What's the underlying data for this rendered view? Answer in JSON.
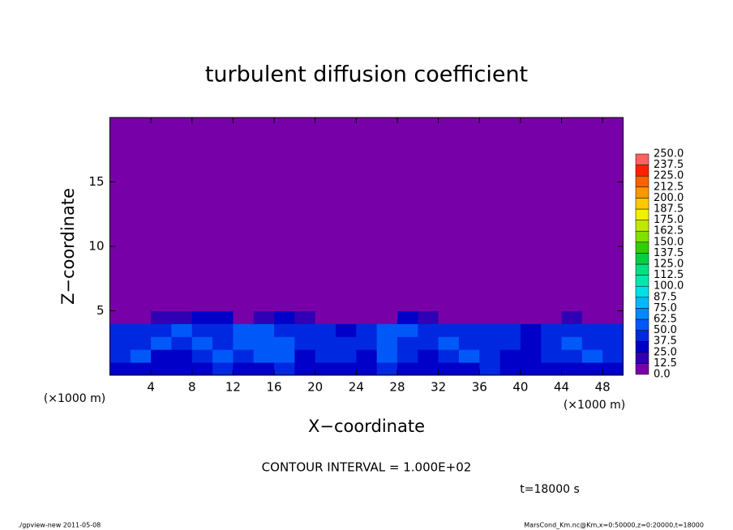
{
  "chart_data": {
    "type": "heatmap",
    "title": "turbulent diffusion coefficient",
    "xlabel": "X−coordinate",
    "ylabel": "Z−coordinate",
    "x_unit": "(×1000 m)",
    "x_unit_right": "(×1000 m)",
    "annotation": "CONTOUR INTERVAL = 1.000E+02",
    "time_label": "t=18000 s",
    "footer_left": "./gpview-new   2011-05-08",
    "footer_right": "MarsCond_Km.nc@Km,x=0:50000,z=0:20000,t=18000",
    "xlim": [
      0,
      50
    ],
    "ylim": [
      0,
      20
    ],
    "xticks": [
      4,
      8,
      12,
      16,
      20,
      24,
      28,
      32,
      36,
      40,
      44,
      48
    ],
    "yticks": [
      5,
      10,
      15
    ],
    "x_edges": [
      0,
      2,
      4,
      6,
      8,
      10,
      12,
      14,
      16,
      18,
      20,
      22,
      24,
      26,
      28,
      30,
      32,
      34,
      36,
      38,
      40,
      42,
      44,
      46,
      48,
      50
    ],
    "z_edges": [
      0,
      1,
      2,
      3,
      4,
      5,
      20
    ],
    "z_values": [
      [
        30,
        35,
        28,
        25,
        32,
        40,
        30,
        35,
        45,
        30,
        28,
        35,
        30,
        40,
        32,
        28,
        30,
        35,
        38,
        30,
        28,
        32,
        30,
        35,
        30
      ],
      [
        40,
        50,
        35,
        30,
        45,
        55,
        40,
        50,
        60,
        35,
        40,
        45,
        35,
        55,
        40,
        35,
        45,
        50,
        40,
        35,
        30,
        40,
        45,
        50,
        40
      ],
      [
        45,
        40,
        50,
        45,
        55,
        45,
        50,
        55,
        50,
        40,
        45,
        40,
        45,
        50,
        45,
        40,
        55,
        45,
        40,
        38,
        35,
        40,
        50,
        45,
        40
      ],
      [
        40,
        45,
        38,
        50,
        48,
        45,
        55,
        50,
        45,
        42,
        38,
        35,
        40,
        55,
        50,
        45,
        40,
        42,
        40,
        38,
        36,
        40,
        45,
        48,
        40
      ],
      [
        5,
        10,
        15,
        20,
        30,
        25,
        5,
        20,
        25,
        20,
        5,
        5,
        5,
        10,
        25,
        20,
        10,
        5,
        5,
        5,
        5,
        5,
        15,
        10,
        5
      ],
      [
        0,
        0,
        0,
        0,
        0,
        0,
        0,
        0,
        0,
        0,
        0,
        0,
        0,
        0,
        0,
        0,
        0,
        0,
        0,
        0,
        0,
        0,
        0,
        0,
        0
      ]
    ],
    "levels": [
      {
        "value": 0,
        "label": "0.0"
      },
      12.5,
      {
        "value": 25,
        "label": "25.0"
      },
      37.5,
      {
        "value": 50,
        "label": "50.0"
      },
      62.5,
      {
        "value": 75,
        "label": "75.0"
      },
      87.5,
      {
        "value": 100,
        "label": "100.0"
      },
      112.5,
      {
        "value": 125,
        "label": "125.0"
      },
      137.5,
      {
        "value": 150,
        "label": "150.0"
      },
      162.5,
      {
        "value": 175,
        "label": "175.0"
      },
      187.5,
      {
        "value": 200,
        "label": "200.0"
      },
      212.5,
      {
        "value": 225,
        "label": "225.0"
      },
      237.5,
      {
        "value": 250,
        "label": "250.0"
      }
    ],
    "colors": [
      "#7800a8",
      "#3000b4",
      "#0000c8",
      "#0028e0",
      "#0058f8",
      "#0088ff",
      "#00b8ff",
      "#00e0e8",
      "#00e8b0",
      "#00e080",
      "#00d040",
      "#30d000",
      "#80e000",
      "#c0e800",
      "#f0f000",
      "#ffc800",
      "#ff9600",
      "#ff6000",
      "#ff2000",
      "#ff6060"
    ]
  }
}
